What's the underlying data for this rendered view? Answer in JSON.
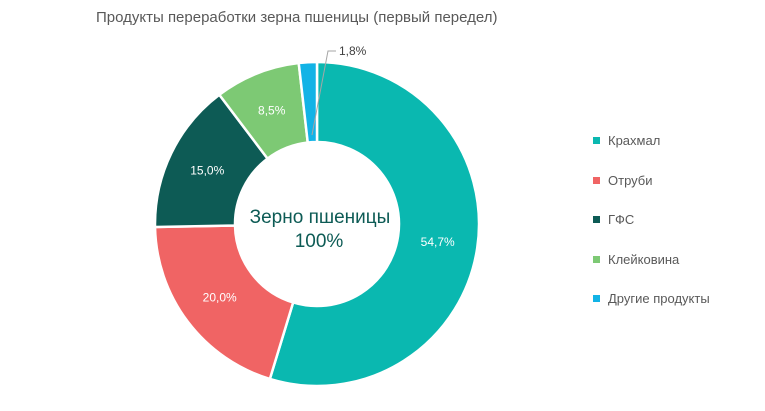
{
  "chart_data": {
    "type": "pie",
    "donut": true,
    "title": "Продукты переработки зерна пшеницы (первый передел)",
    "center_label": {
      "line1": "Зерно пшеницы",
      "line2": "100%"
    },
    "categories": [
      "Крахмал",
      "Отруби",
      "ГФС",
      "Клейковина",
      "Другие продукты"
    ],
    "values": [
      54.7,
      20.0,
      15.0,
      8.5,
      1.8
    ],
    "value_labels": [
      "54,7%",
      "20,0%",
      "15,0%",
      "8,5%",
      "1,8%"
    ],
    "colors": [
      "#0ab8b0",
      "#f06464",
      "#0d5b55",
      "#7dc974",
      "#12b3e6"
    ],
    "legend_position": "right"
  },
  "colors": {
    "center_text": "#0d5b55",
    "label_light": "#ffffff",
    "label_dark": "#404040",
    "leader": "#a6a6a6"
  }
}
